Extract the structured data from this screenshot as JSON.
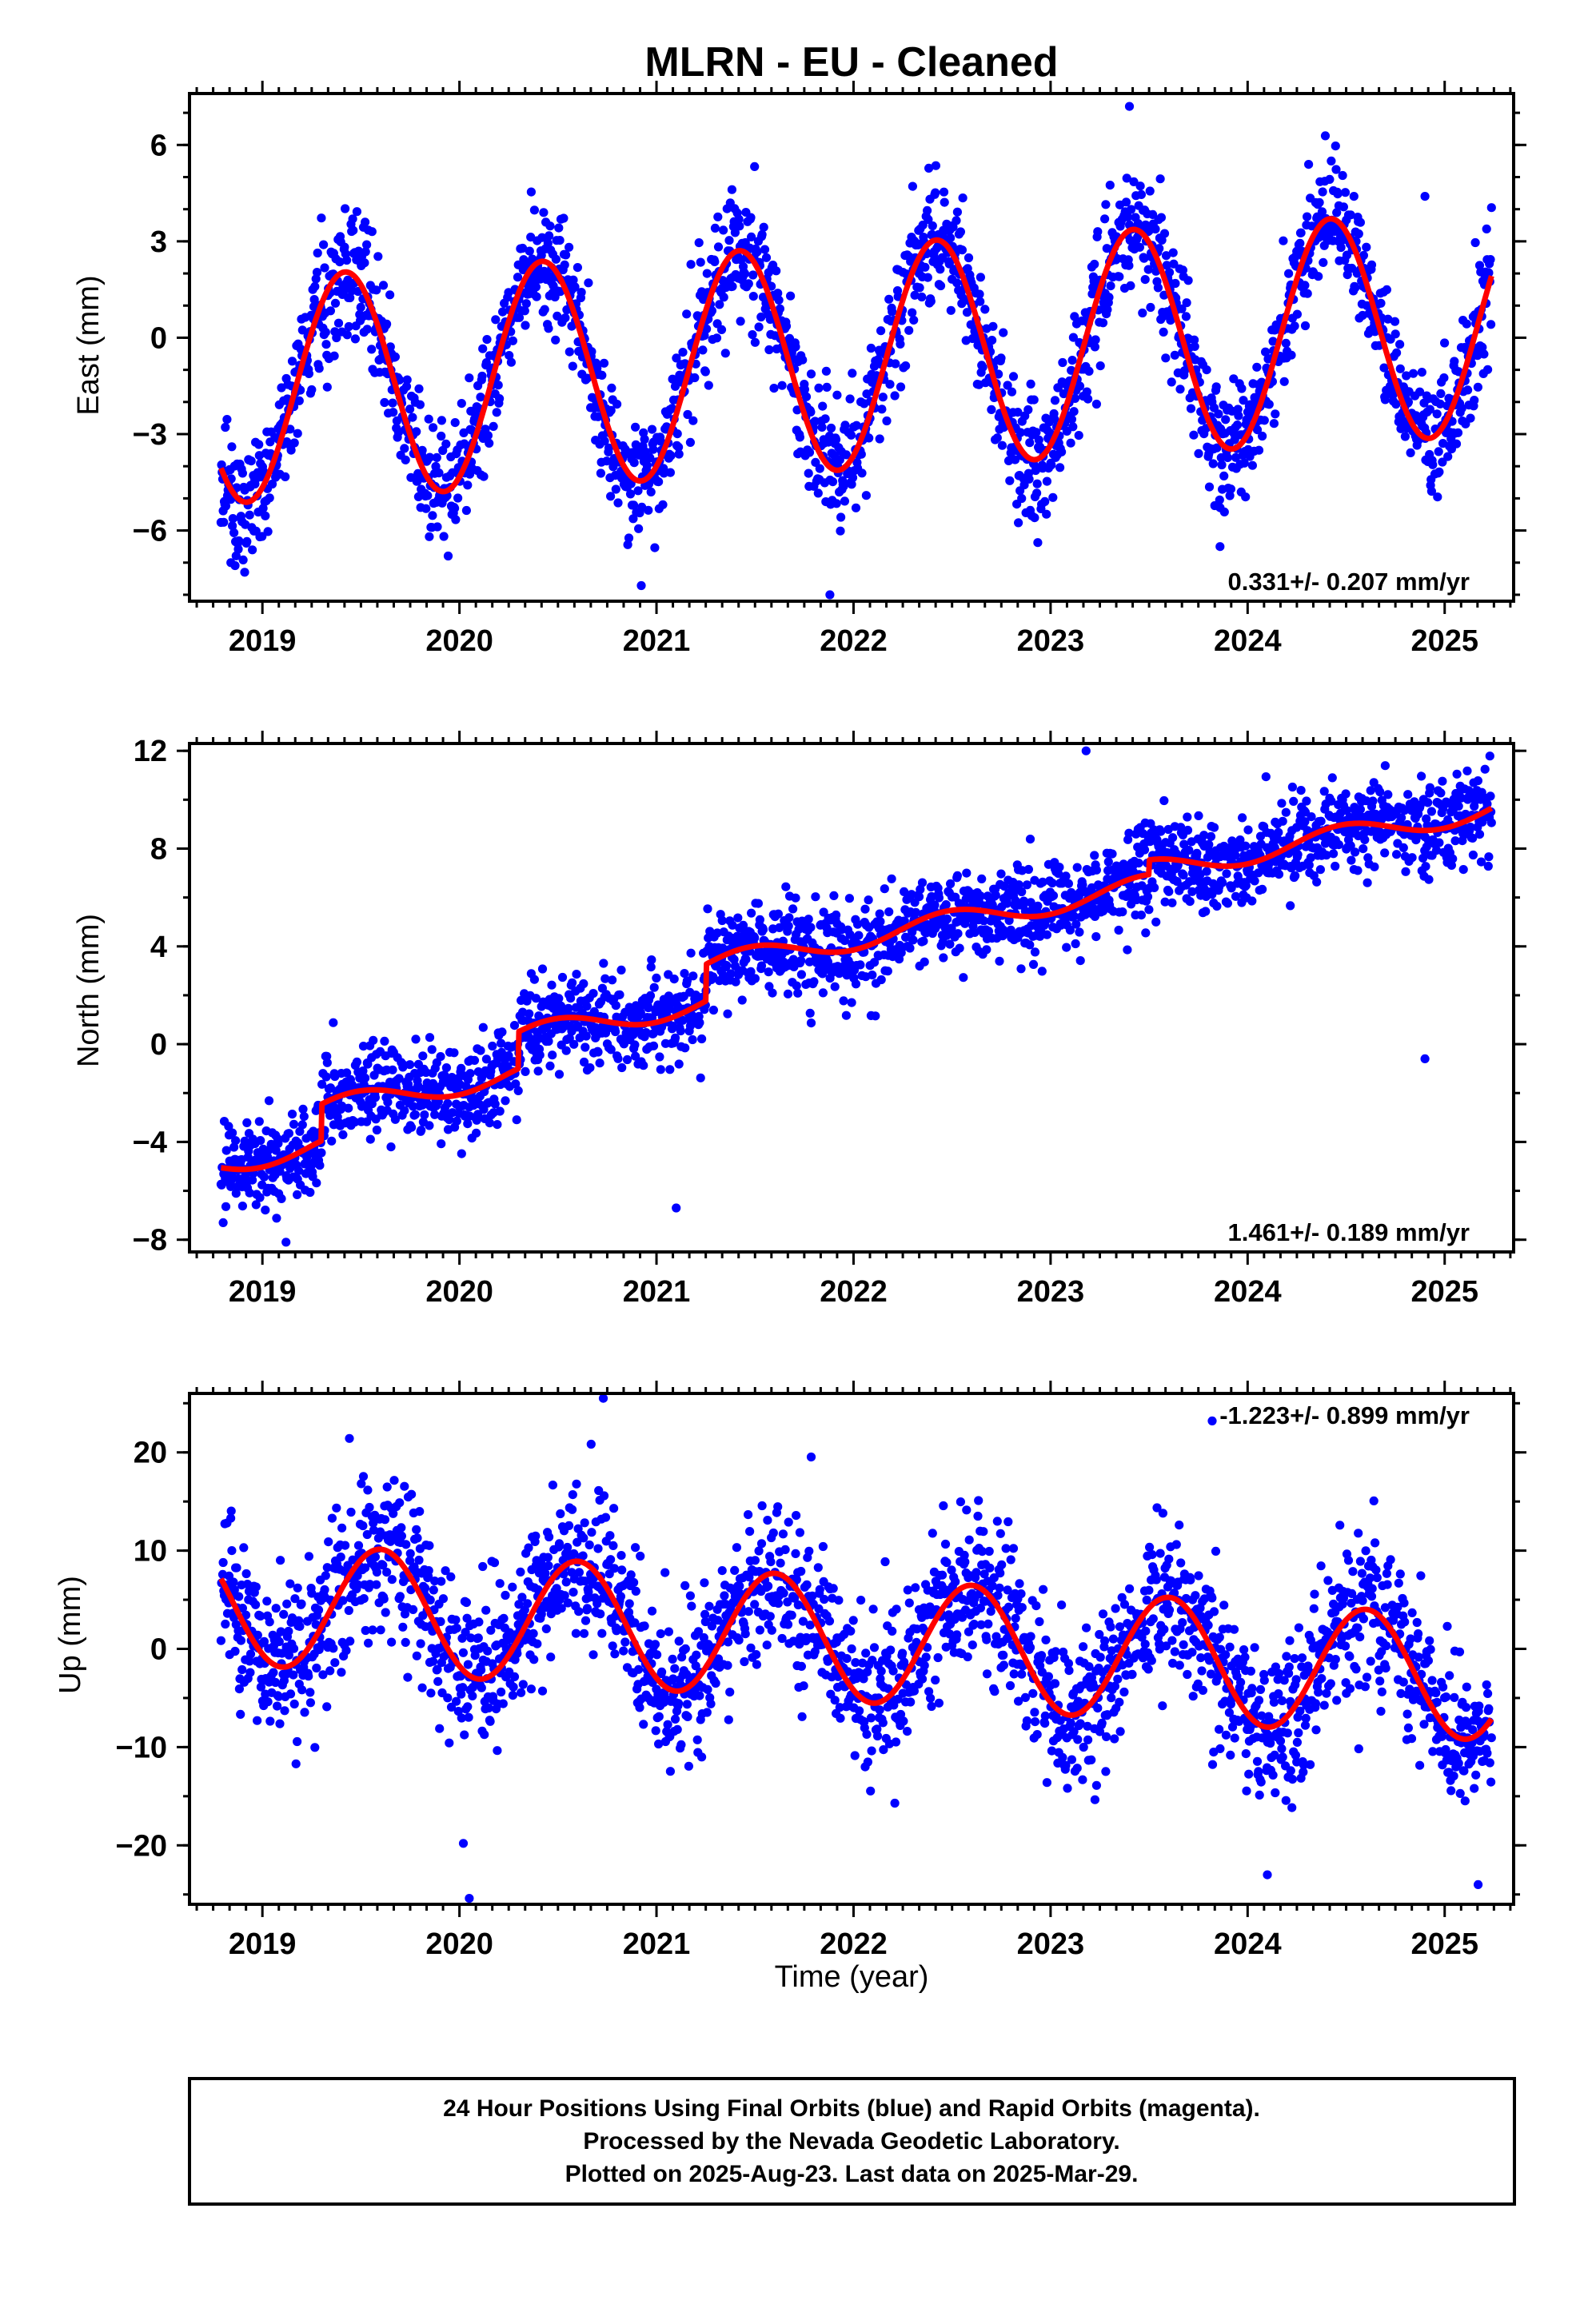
{
  "title": "MLRN  - EU - Cleaned",
  "xlabel": "Time (year)",
  "colors": {
    "points": "#0000ff",
    "fit": "#ff0000",
    "axes": "#000000"
  },
  "footer": {
    "lines": [
      "24 Hour Positions Using Final Orbits (blue) and Rapid Orbits (magenta).",
      "Processed by the Nevada Geodetic Laboratory.",
      "Plotted on 2025-Aug-23. Last data on 2025-Mar-29."
    ]
  },
  "chart_data": [
    {
      "type": "scatter",
      "name": "east",
      "ylabel": "East (mm)",
      "rate_label": "0.331+/- 0.207 mm/yr",
      "rate_position": "bottom-right",
      "xlim": [
        2018.63,
        2025.35
      ],
      "ylim": [
        -8.2,
        7.6
      ],
      "xticks": [
        2019,
        2020,
        2021,
        2022,
        2023,
        2024,
        2025
      ],
      "yticks": [
        -6,
        -3,
        0,
        3,
        6
      ],
      "yminor": 1,
      "x_start": 2018.79,
      "x_end": 2025.24,
      "fit": {
        "type": "trend+annual",
        "offset": -0.6,
        "rate": 0.331,
        "annual_amp": 3.5,
        "peak_phase": 0.42,
        "x0": 2022.0
      },
      "scatter": {
        "noise_sd": 0.95,
        "seed": 17
      },
      "outliers": [
        [
          2018.84,
          -7.0
        ],
        [
          2018.91,
          -7.3
        ],
        [
          2021.88,
          -8.0
        ],
        [
          2023.86,
          -6.5
        ],
        [
          2023.4,
          7.2
        ],
        [
          2024.9,
          4.4
        ],
        [
          2021.68,
          1.3
        ]
      ]
    },
    {
      "type": "scatter",
      "name": "north",
      "ylabel": "North (mm)",
      "rate_label": "1.461+/- 0.189 mm/yr",
      "rate_position": "bottom-right",
      "xlim": [
        2018.63,
        2025.35
      ],
      "ylim": [
        -8.5,
        12.3
      ],
      "xticks": [
        2019,
        2020,
        2021,
        2022,
        2023,
        2024,
        2025
      ],
      "yticks": [
        -8,
        -4,
        0,
        4,
        8,
        12
      ],
      "yminor": 2,
      "x_start": 2018.79,
      "x_end": 2025.24,
      "fit": {
        "type": "trend+annual",
        "offset": -0.2,
        "rate": 1.461,
        "annual_amp": 0.45,
        "peak_phase": 0.48,
        "x0": 2022.0,
        "steps": [
          [
            2019.3,
            1.5
          ],
          [
            2020.3,
            1.5
          ],
          [
            2021.25,
            1.5
          ],
          [
            2023.5,
            0.6
          ]
        ]
      },
      "scatter": {
        "noise_sd": 0.9,
        "seed": 29
      },
      "outliers": [
        [
          2023.18,
          12.0
        ],
        [
          2023.78,
          8.1
        ],
        [
          2024.9,
          -0.6
        ],
        [
          2021.1,
          -6.7
        ],
        [
          2019.12,
          -8.1
        ]
      ]
    },
    {
      "type": "scatter",
      "name": "up",
      "ylabel": "Up (mm)",
      "rate_label": "-1.223+/- 0.899 mm/yr",
      "rate_position": "top-right",
      "xlim": [
        2018.63,
        2025.35
      ],
      "ylim": [
        -26,
        26
      ],
      "xticks": [
        2019,
        2020,
        2021,
        2022,
        2023,
        2024,
        2025
      ],
      "yticks": [
        -20,
        -10,
        0,
        10,
        20
      ],
      "yminor": 5,
      "x_start": 2018.79,
      "x_end": 2025.24,
      "fit": {
        "type": "trend+annual",
        "offset": 0.9,
        "rate": -1.223,
        "annual_amp": 6.3,
        "peak_phase": 0.6,
        "x0": 2022.0
      },
      "scatter": {
        "noise_sd": 4.0,
        "seed": 43
      },
      "outliers": [
        [
          2020.05,
          -25.4
        ],
        [
          2020.73,
          25.5
        ],
        [
          2023.82,
          23.2
        ],
        [
          2025.17,
          -24.0
        ],
        [
          2020.02,
          -19.8
        ],
        [
          2024.1,
          -23.0
        ]
      ]
    }
  ]
}
